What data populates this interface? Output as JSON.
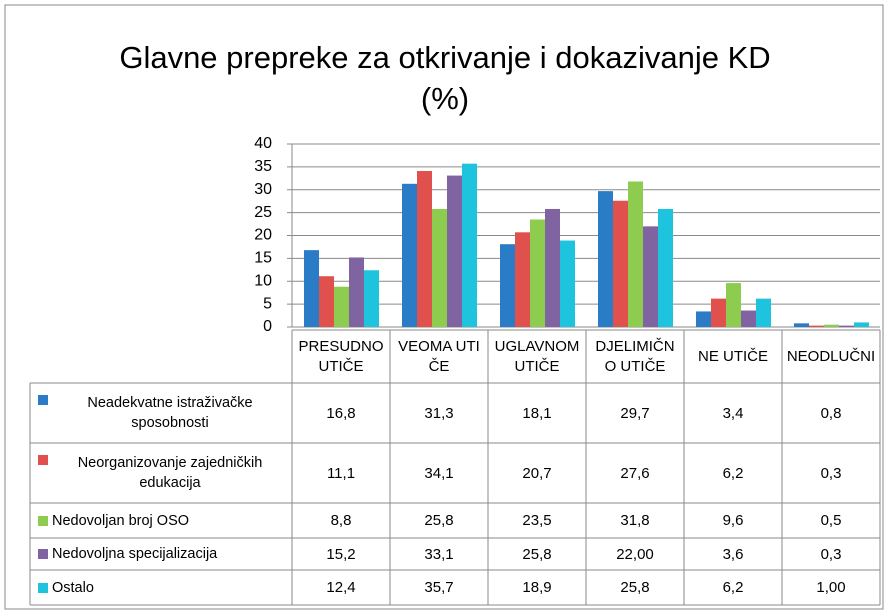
{
  "chart_data": {
    "type": "bar",
    "title": "Glavne prepreke za otkrivanje i dokazivanje KD",
    "subtitle": "(%)",
    "categories": [
      "PRESUDNO UTIČE",
      "VEOMA UTIČE",
      "UGLAVNOM UTIČE",
      "DJELIMIČNO UTIČE",
      "NE UTIČE",
      "NEODLUČNI"
    ],
    "series": [
      {
        "name": "Neadekvatne istraživačke sposobnosti",
        "color": "#2a7cc7",
        "values": [
          16.8,
          31.3,
          18.1,
          29.7,
          3.4,
          0.8
        ],
        "value_labels": [
          "16,8",
          "31,3",
          "18,1",
          "29,7",
          "3,4",
          "0,8"
        ]
      },
      {
        "name": "Neorganizovanje zajedničkih edukacija",
        "color": "#e0504d",
        "values": [
          11.1,
          34.1,
          20.7,
          27.6,
          6.2,
          0.3
        ],
        "value_labels": [
          "11,1",
          "34,1",
          "20,7",
          "27,6",
          "6,2",
          "0,3"
        ]
      },
      {
        "name": "Nedovoljan broj OSO",
        "color": "#8dcc4f",
        "values": [
          8.8,
          25.8,
          23.5,
          31.8,
          9.6,
          0.5
        ],
        "value_labels": [
          "8,8",
          "25,8",
          "23,5",
          "31,8",
          "9,6",
          "0,5"
        ]
      },
      {
        "name": "Nedovoljna specijalizacija",
        "color": "#8064a2",
        "values": [
          15.2,
          33.1,
          25.8,
          22.0,
          3.6,
          0.3
        ],
        "value_labels": [
          "15,2",
          "33,1",
          "25,8",
          "22,00",
          "3,6",
          "0,3"
        ]
      },
      {
        "name": "Ostalo",
        "color": "#1ec3de",
        "values": [
          12.4,
          35.7,
          18.9,
          25.8,
          6.2,
          1.0
        ],
        "value_labels": [
          "12,4",
          "35,7",
          "18,9",
          "25,8",
          "6,2",
          "1,00"
        ]
      }
    ],
    "ylim": [
      0,
      40
    ],
    "yticks": [
      0,
      5,
      10,
      15,
      20,
      25,
      30,
      35,
      40
    ],
    "grid": true
  }
}
